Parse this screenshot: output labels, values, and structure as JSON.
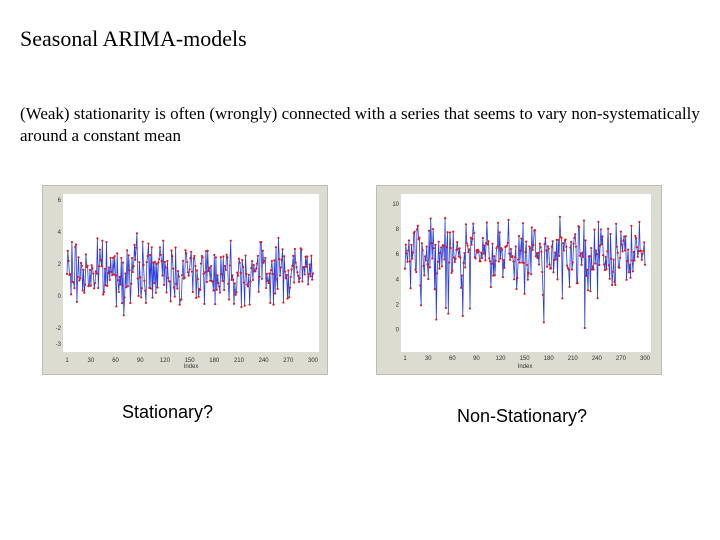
{
  "slide": {
    "title": "Seasonal ARIMA-models",
    "text": "(Weak) stationarity is often (wrongly) connected with a series that seems to vary non-systematically around a constant mean"
  },
  "captions": {
    "left": "Stationary?",
    "right": "Non-Stationary?"
  },
  "colors": {
    "line": "#2b3de0",
    "points": "#e01a1a",
    "background": "#dcdcd0",
    "panel": "#ffffff"
  },
  "chart_data": [
    {
      "type": "line",
      "xlabel": "Index",
      "ylabel": "",
      "xlim": [
        1,
        300
      ],
      "ylim": [
        -3,
        6
      ],
      "x_ticks": [
        "1",
        "30",
        "60",
        "90",
        "120",
        "150",
        "180",
        "210",
        "240",
        "270",
        "300"
      ],
      "y_ticks": [
        "6",
        "4",
        "2",
        "0",
        "-2",
        "-3"
      ],
      "n_points": 300,
      "mean": 1.5,
      "spread": 1.2
    },
    {
      "type": "line",
      "xlabel": "Index",
      "ylabel": "",
      "xlim": [
        1,
        300
      ],
      "ylim": [
        -1,
        10
      ],
      "x_ticks": [
        "1",
        "30",
        "60",
        "90",
        "120",
        "150",
        "180",
        "210",
        "240",
        "270",
        "300"
      ],
      "y_ticks": [
        "10",
        "8",
        "6",
        "4",
        "2",
        "0"
      ],
      "n_points": 300,
      "mean": 6,
      "spread": 1.6
    }
  ]
}
